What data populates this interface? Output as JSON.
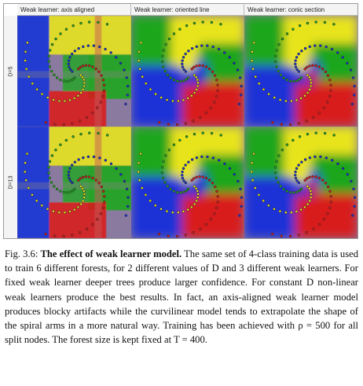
{
  "figure": {
    "column_titles": [
      "Weak learner: axis aligned",
      "Weak learner: oriented line",
      "Weak learner: conic section"
    ],
    "row_labels": [
      "D=5",
      "D=13"
    ],
    "class_colors": [
      "#e8e41e",
      "#1fa61f",
      "#1a33d6",
      "#d81c1c"
    ],
    "panels": [
      {
        "name": "axis-aligned-d5",
        "style": "axis"
      },
      {
        "name": "oriented-line-d5",
        "style": "line"
      },
      {
        "name": "conic-section-d5",
        "style": "conic"
      },
      {
        "name": "axis-aligned-d13",
        "style": "axis"
      },
      {
        "name": "oriented-line-d13",
        "style": "line"
      },
      {
        "name": "conic-section-d13",
        "style": "conic"
      }
    ]
  },
  "caption": {
    "label": "Fig. 3.6:",
    "title": "The effect of weak learner model.",
    "body": "The same set of 4-class training data is used to train 6 different forests, for 2 different values of D and 3 different weak learners. For fixed weak learner deeper trees produce larger confidence. For constant D non-linear weak learners produce the best results. In fact, an axis-aligned weak learner model produces blocky artifacts while the curvilinear model tends to extrapolate the shape of the spiral arms in a more natural way. Training has been achieved with ρ = 500 for all split nodes. The forest size is kept fixed at T = 400."
  }
}
